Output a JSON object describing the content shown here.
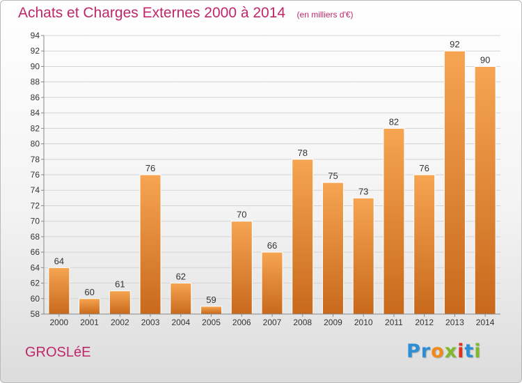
{
  "page": {
    "location_name": "GROSLéE"
  },
  "branding": {
    "logo_text": "Proxiti",
    "logo_letter_colors": [
      "#2a8fd6",
      "#2a8fd6",
      "#f08a1a",
      "#7fba2c",
      "#e0301e",
      "#2a8fd6",
      "#7fba2c"
    ]
  },
  "colors": {
    "title": "#c0266a",
    "bar_top": "#f6a552",
    "bar_bottom": "#c8691c",
    "grid": "#d4d4d4",
    "axis_text": "#333333"
  },
  "chart_data": {
    "type": "bar",
    "title": "Achats et Charges Externes 2000 à 2014",
    "unit_label": "(en milliers d'€)",
    "xlabel": "",
    "ylabel": "",
    "categories": [
      "2000",
      "2001",
      "2002",
      "2003",
      "2004",
      "2005",
      "2006",
      "2007",
      "2008",
      "2009",
      "2010",
      "2011",
      "2012",
      "2013",
      "2014"
    ],
    "values": [
      64,
      60,
      61,
      76,
      62,
      59,
      70,
      66,
      78,
      75,
      73,
      82,
      76,
      92,
      90
    ],
    "ylim": [
      58,
      94
    ],
    "yticks": [
      58,
      60,
      62,
      64,
      66,
      68,
      70,
      72,
      74,
      76,
      78,
      80,
      82,
      84,
      86,
      88,
      90,
      92,
      94
    ],
    "grid": true,
    "legend": "none",
    "data_labels": true
  }
}
